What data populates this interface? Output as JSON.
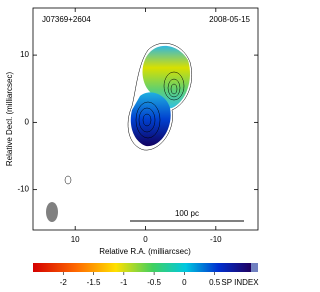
{
  "chart_data": {
    "type": "image",
    "title": "J07369+2604",
    "subtitle": "2008-05-15",
    "xlabel": "Relative R.A. (milliarcsec)",
    "ylabel": "Relative Decl. (milliarcsec)",
    "xlim": [
      16,
      -16
    ],
    "xticks": [
      10,
      0,
      -10
    ],
    "ylim": [
      -16,
      17
    ],
    "yticks": [
      10,
      0,
      -10
    ],
    "annotation": "100 pc",
    "colorbar": {
      "label": "SP INDEX",
      "lim": [
        -2.5,
        1.1
      ],
      "ticks": [
        -2,
        -1.5,
        -1,
        -0.5,
        0,
        0.5
      ]
    }
  }
}
